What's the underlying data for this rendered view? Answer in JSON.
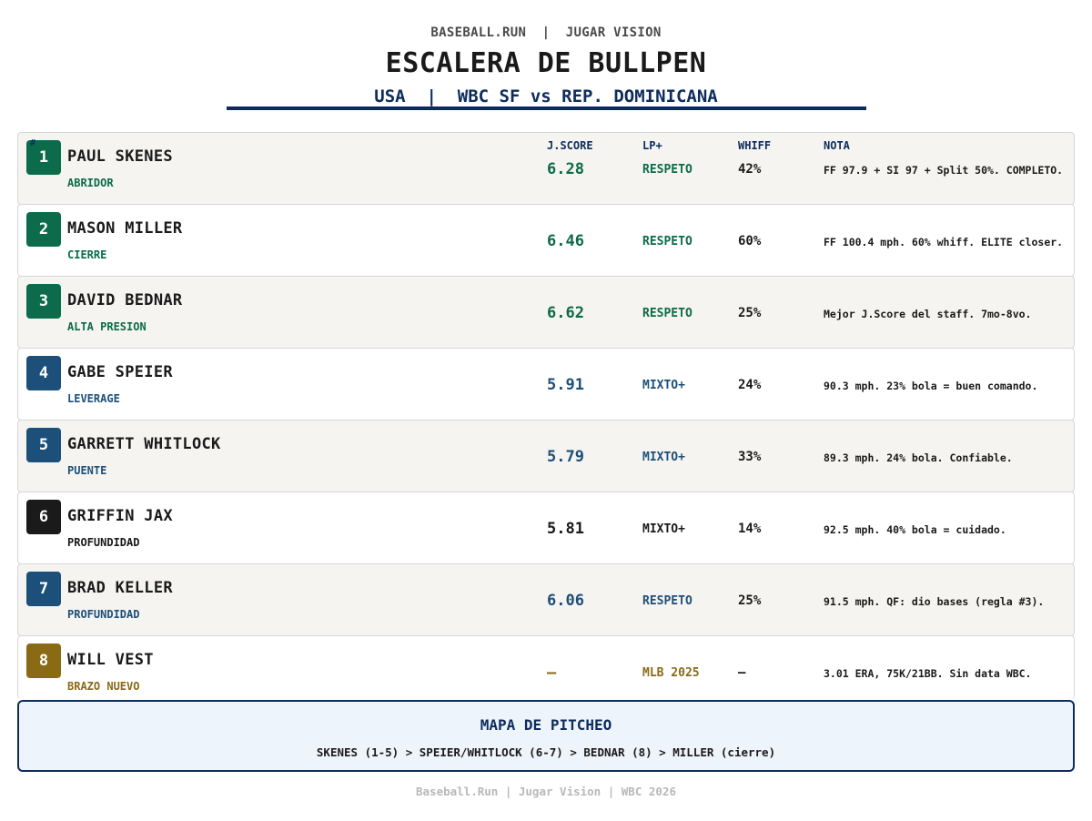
{
  "header": {
    "kicker": "BASEBALL.RUN  |  JUGAR VISION",
    "title": "ESCALERA DE BULLPEN",
    "subtitle": "USA  |  WBC SF vs REP. DOMINICANA"
  },
  "columns": {
    "hash": "#",
    "jscore": "J.SCORE",
    "lp": "LP+",
    "whiff": "WHIFF",
    "nota": "NOTA"
  },
  "colors": {
    "green": "#0b6b4a",
    "blue": "#1c4f7a",
    "black": "#1a1a1a",
    "gold": "#8a6a14",
    "navy": "#0d2c5c"
  },
  "pitchers": [
    {
      "rank": "1",
      "name": "PAUL SKENES",
      "role": "ABRIDOR",
      "jscore": "6.28",
      "lp": "RESPETO",
      "whiff": "42%",
      "nota": "FF 97.9 + SI 97 + Split 50%. COMPLETO.",
      "color": "#0b6b4a"
    },
    {
      "rank": "2",
      "name": "MASON MILLER",
      "role": "CIERRE",
      "jscore": "6.46",
      "lp": "RESPETO",
      "whiff": "60%",
      "nota": "FF 100.4 mph. 60% whiff. ELITE closer.",
      "color": "#0b6b4a"
    },
    {
      "rank": "3",
      "name": "DAVID BEDNAR",
      "role": "ALTA PRESION",
      "jscore": "6.62",
      "lp": "RESPETO",
      "whiff": "25%",
      "nota": "Mejor J.Score del staff. 7mo-8vo.",
      "color": "#0b6b4a"
    },
    {
      "rank": "4",
      "name": "GABE SPEIER",
      "role": "LEVERAGE",
      "jscore": "5.91",
      "lp": "MIXTO+",
      "whiff": "24%",
      "nota": "90.3 mph. 23% bola = buen comando.",
      "color": "#1c4f7a"
    },
    {
      "rank": "5",
      "name": "GARRETT WHITLOCK",
      "role": "PUENTE",
      "jscore": "5.79",
      "lp": "MIXTO+",
      "whiff": "33%",
      "nota": "89.3 mph. 24% bola. Confiable.",
      "color": "#1c4f7a"
    },
    {
      "rank": "6",
      "name": "GRIFFIN JAX",
      "role": "PROFUNDIDAD",
      "jscore": "5.81",
      "lp": "MIXTO+",
      "whiff": "14%",
      "nota": "92.5 mph. 40% bola = cuidado.",
      "color": "#1a1a1a"
    },
    {
      "rank": "7",
      "name": "BRAD KELLER",
      "role": "PROFUNDIDAD",
      "jscore": "6.06",
      "lp": "RESPETO",
      "whiff": "25%",
      "nota": "91.5 mph. QF: dio bases (regla #3).",
      "color": "#1c4f7a"
    },
    {
      "rank": "8",
      "name": "WILL VEST",
      "role": "BRAZO NUEVO",
      "jscore": "—",
      "lp": "MLB 2025",
      "whiff": "—",
      "nota": "3.01 ERA, 75K/21BB. Sin data WBC.",
      "color": "#8a6a14"
    }
  ],
  "map": {
    "title": "MAPA DE PITCHEO",
    "text": "SKENES (1-5) > SPEIER/WHITLOCK (6-7) > BEDNAR (8) > MILLER (cierre)"
  },
  "footer": "Baseball.Run | Jugar Vision | WBC 2026"
}
